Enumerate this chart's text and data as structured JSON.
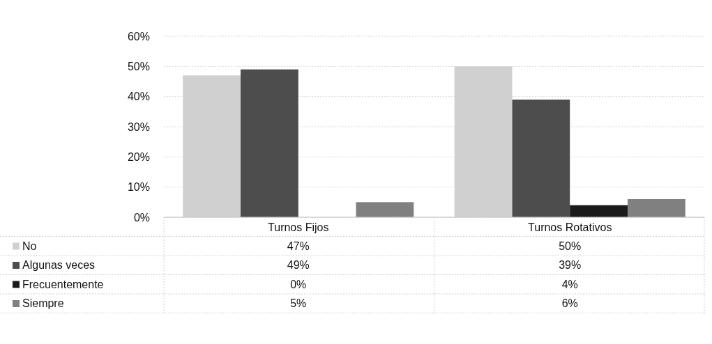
{
  "chart_data": {
    "type": "bar",
    "categories": [
      "Turnos Fijos",
      "Turnos Rotativos"
    ],
    "series": [
      {
        "name": "No",
        "color": "#d0d0d0",
        "values": [
          47,
          50
        ]
      },
      {
        "name": "Algunas veces",
        "color": "#4d4d4d",
        "values": [
          49,
          39
        ]
      },
      {
        "name": "Frecuentemente",
        "color": "#1a1a1a",
        "values": [
          0,
          4
        ]
      },
      {
        "name": "Siempre",
        "color": "#808080",
        "values": [
          5,
          6
        ]
      }
    ],
    "ylim": [
      0,
      60
    ],
    "yticks": [
      {
        "value": 0,
        "label": "0%"
      },
      {
        "value": 10,
        "label": "10%"
      },
      {
        "value": 20,
        "label": "20%"
      },
      {
        "value": 30,
        "label": "30%"
      },
      {
        "value": 40,
        "label": "40%"
      },
      {
        "value": 50,
        "label": "50%"
      },
      {
        "value": 60,
        "label": "60%"
      }
    ],
    "value_labels": [
      [
        "47%",
        "50%"
      ],
      [
        "49%",
        "39%"
      ],
      [
        "0%",
        "4%"
      ],
      [
        "5%",
        "6%"
      ]
    ],
    "grid": "y",
    "legend": "bottom"
  }
}
